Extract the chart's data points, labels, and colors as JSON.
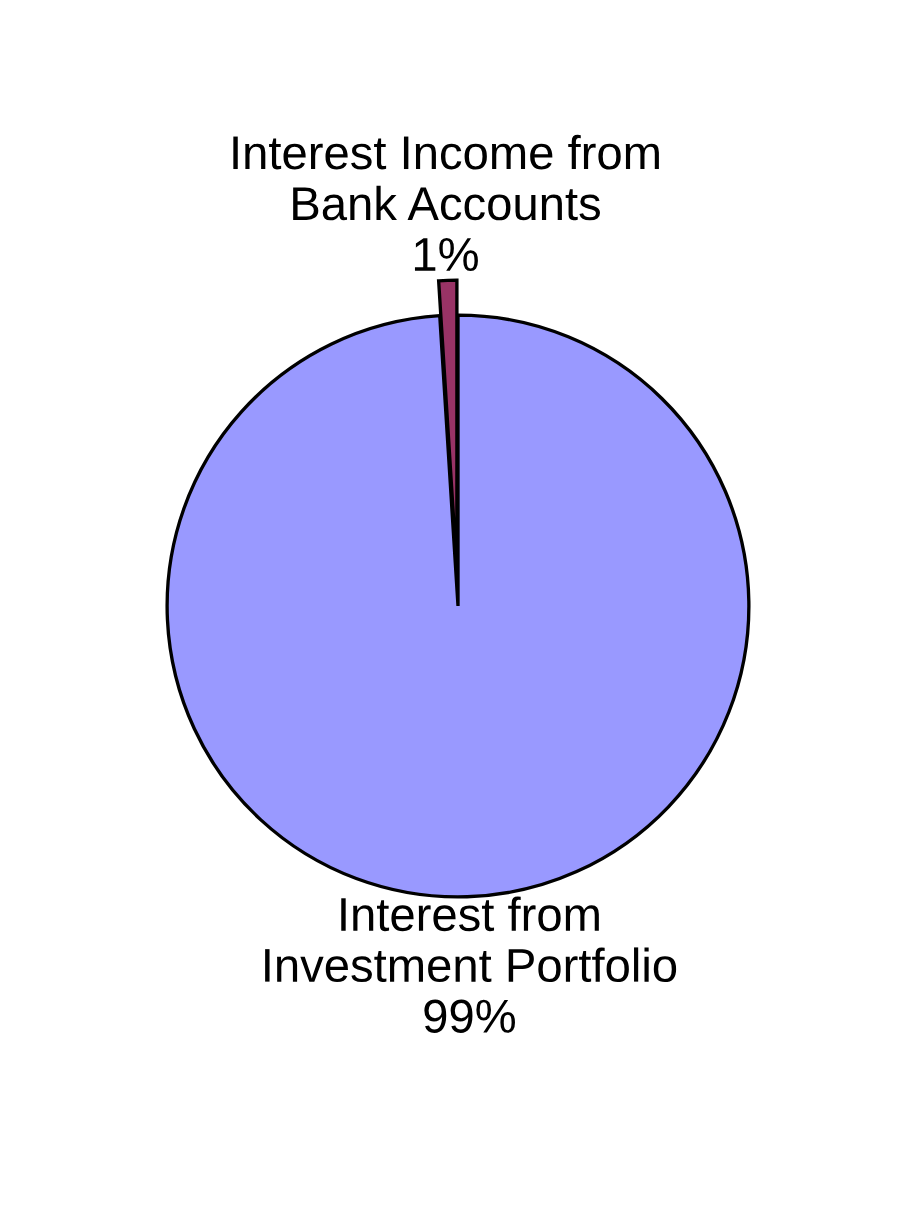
{
  "chart_data": {
    "type": "pie",
    "categories": [
      "Interest Income from\nBank Accounts",
      "Interest from\nInvestment Portfolio"
    ],
    "values": [
      1,
      99
    ],
    "colors": [
      "#993366",
      "#9999ff"
    ],
    "value_labels": [
      "1%",
      "99%"
    ]
  }
}
